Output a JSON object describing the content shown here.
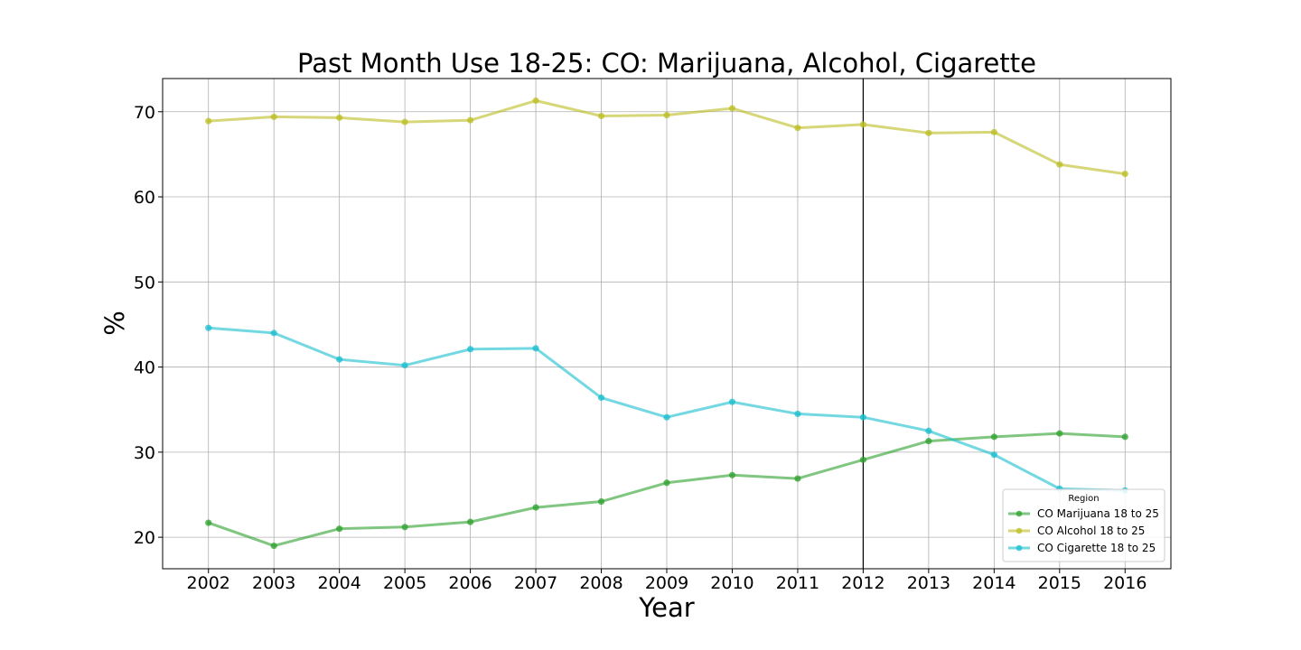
{
  "chart_data": {
    "type": "line",
    "title": "Past Month Use 18-25: CO: Marijuana, Alcohol, Cigarette",
    "xlabel": "Year",
    "ylabel": "%",
    "x": [
      2002,
      2003,
      2004,
      2005,
      2006,
      2007,
      2008,
      2009,
      2010,
      2011,
      2012,
      2013,
      2014,
      2015,
      2016
    ],
    "x_ticks": [
      "2002",
      "2003",
      "2004",
      "2005",
      "2006",
      "2007",
      "2008",
      "2009",
      "2010",
      "2011",
      "2012",
      "2013",
      "2014",
      "2015",
      "2016"
    ],
    "y_ticks": [
      "20",
      "30",
      "40",
      "50",
      "60",
      "70"
    ],
    "xlim": [
      2001.3,
      2016.7
    ],
    "ylim": [
      16.3,
      73.9
    ],
    "grid": true,
    "vertical_marker_x": 2012,
    "legend": {
      "title": "Region",
      "placement": "lower-right"
    },
    "series": [
      {
        "name": "CO Marijuana 18 to 25",
        "color": "#2ca02c",
        "values": [
          21.7,
          19.0,
          21.0,
          21.2,
          21.8,
          23.5,
          24.2,
          26.4,
          27.3,
          26.9,
          29.1,
          31.3,
          31.8,
          32.2,
          31.8
        ]
      },
      {
        "name": "CO Alcohol 18 to 25",
        "color": "#bcbd22",
        "values": [
          68.9,
          69.4,
          69.3,
          68.8,
          69.0,
          71.3,
          69.5,
          69.6,
          70.4,
          68.1,
          68.5,
          67.5,
          67.6,
          63.8,
          62.7
        ]
      },
      {
        "name": "CO Cigarette 18 to 25",
        "color": "#17becf",
        "values": [
          44.6,
          44.0,
          40.9,
          40.2,
          42.1,
          42.2,
          36.4,
          34.1,
          35.9,
          34.5,
          34.1,
          32.5,
          29.7,
          25.7,
          25.5
        ]
      }
    ]
  }
}
